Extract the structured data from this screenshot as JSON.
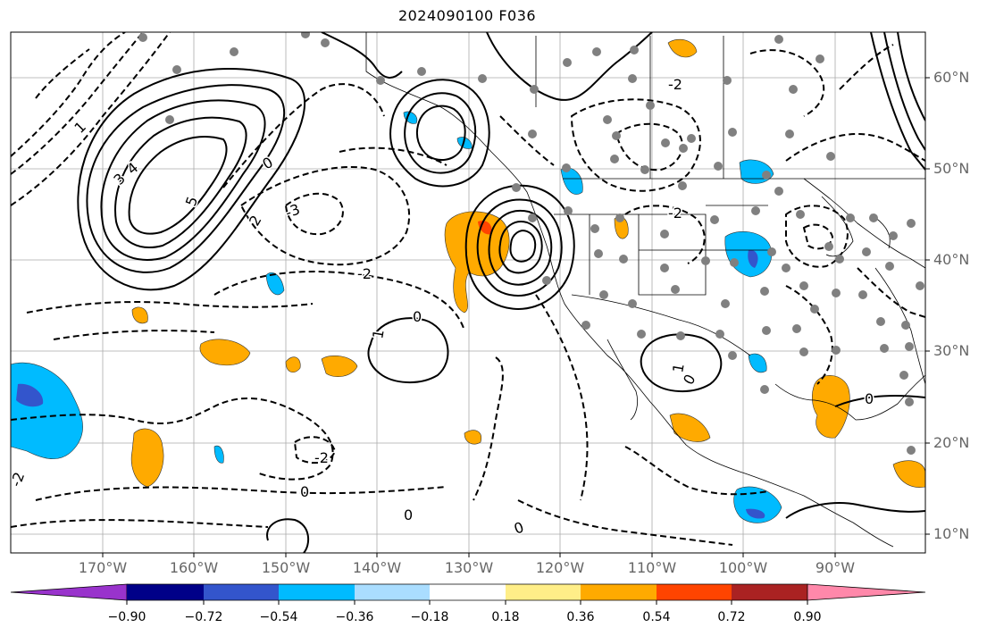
{
  "title": "2024090100 F036",
  "lat_labels": [
    "60°N",
    "50°N",
    "40°N",
    "30°N",
    "20°N",
    "10°N"
  ],
  "lon_labels": [
    "170°W",
    "160°W",
    "150°W",
    "140°W",
    "130°W",
    "120°W",
    "110°W",
    "100°W",
    "90°W"
  ],
  "colorbar": {
    "tick_labels": [
      "−0.90",
      "−0.72",
      "−0.54",
      "−0.36",
      "−0.18",
      "0.18",
      "0.36",
      "0.54",
      "0.72",
      "0.90"
    ],
    "colors": [
      "#9933cc",
      "#000088",
      "#3355cc",
      "#00bbff",
      "#aaddff",
      "#ffffff",
      "#ffee88",
      "#ffaa00",
      "#ff4400",
      "#aa2222",
      "#ff88aa"
    ]
  },
  "contour_labels": [
    "5",
    "4",
    "3",
    "2",
    "1",
    "0",
    "-2",
    "-3",
    "-2",
    "0",
    "1",
    "-2",
    "0",
    "-2",
    "0",
    "1",
    "0",
    "0",
    "0",
    "-2"
  ]
}
